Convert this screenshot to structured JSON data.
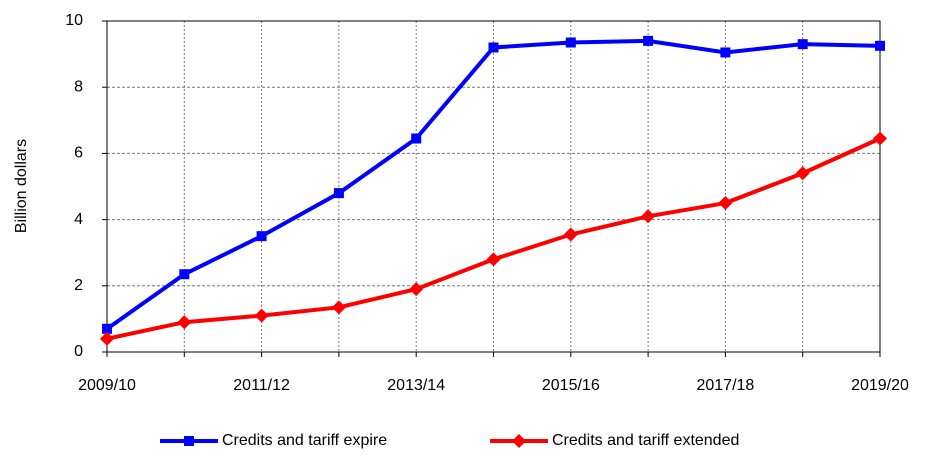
{
  "chart_data": {
    "type": "line",
    "y_label": "Billion dollars",
    "categories": [
      "2009/10",
      null,
      "2011/12",
      null,
      "2013/14",
      null,
      "2015/16",
      null,
      "2017/18",
      null,
      "2019/20"
    ],
    "series": [
      {
        "name": "Credits and tariff expire",
        "color": "#0000ff",
        "marker": "square",
        "values": [
          0.7,
          2.35,
          3.5,
          4.8,
          6.45,
          9.2,
          9.35,
          9.4,
          9.05,
          9.3,
          9.25
        ]
      },
      {
        "name": "Credits and tariff extended",
        "color": "#ff0000",
        "marker": "diamond",
        "values": [
          0.4,
          0.9,
          1.1,
          1.35,
          1.9,
          2.8,
          3.55,
          4.1,
          4.5,
          5.4,
          6.45
        ]
      }
    ],
    "ylim": [
      0,
      10
    ],
    "yticks": [
      0,
      2,
      4,
      6,
      8,
      10
    ],
    "grid": true,
    "legend": "bottom"
  }
}
